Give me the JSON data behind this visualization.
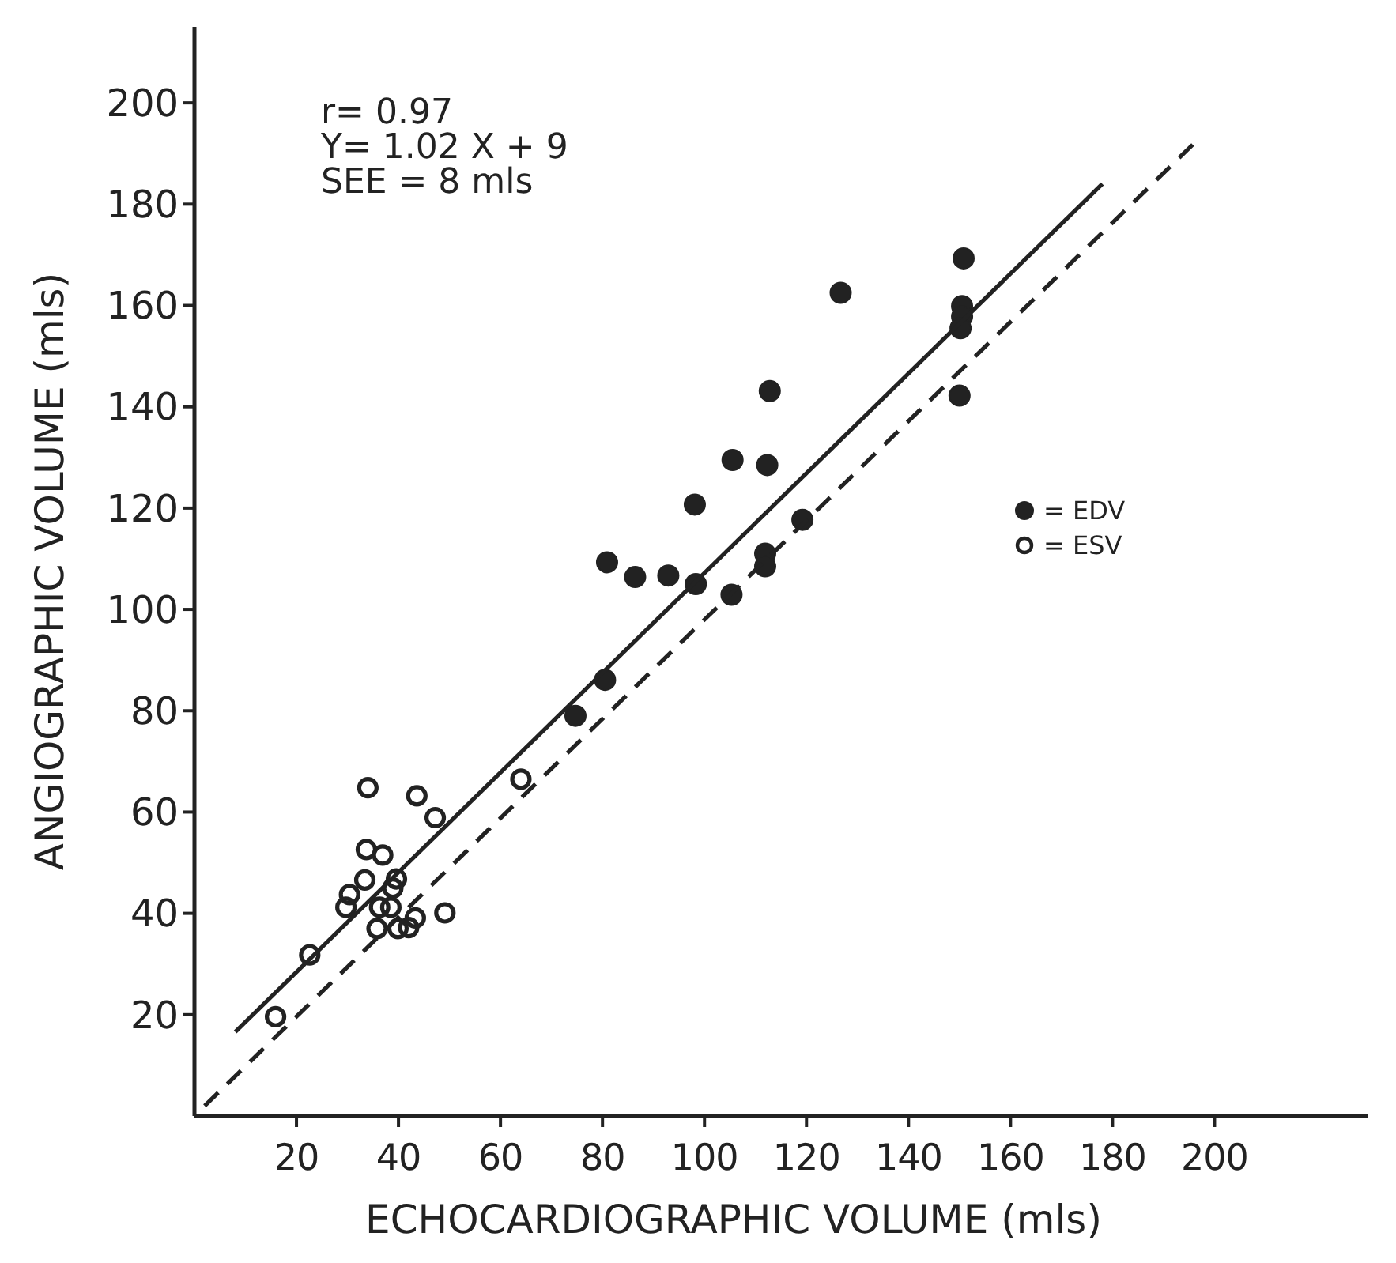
{
  "chart_data": {
    "type": "scatter",
    "xlabel": "ECHOCARDIOGRAPHIC VOLUME (mls)",
    "ylabel": "ANGIOGRAPHIC VOLUME (mls)",
    "xlim": [
      0,
      230
    ],
    "ylim": [
      0,
      215
    ],
    "xticks": [
      20,
      40,
      60,
      80,
      100,
      120,
      140,
      160,
      180,
      200
    ],
    "yticks": [
      20,
      40,
      60,
      80,
      100,
      120,
      140,
      160,
      180,
      200
    ],
    "grid": false,
    "legend": "right",
    "annotations": [
      "r= 0.97",
      "Y= 1.02 X + 9",
      "SEE = 8 mls"
    ],
    "series": [
      {
        "name": "= EDV",
        "marker": "circle",
        "color": "#222222",
        "x": [
          150.8,
          126.7,
          150.5,
          150.5,
          150.2,
          150,
          112.8,
          105.5,
          112.3,
          98.1,
          119.2,
          111.9,
          111.9,
          80.9,
          86.4,
          92.9,
          98.3,
          105.3,
          80.5,
          74.7
        ],
        "values": [
          169.3,
          162.5,
          159.9,
          157.8,
          155.5,
          142.2,
          143.1,
          129.5,
          128.5,
          120.7,
          117.7,
          111,
          108.5,
          109.3,
          106.4,
          106.7,
          105,
          102.9,
          86.1,
          79
        ]
      },
      {
        "name": "= ESV",
        "marker": "circle-open",
        "color": "#222222",
        "x": [
          34,
          43.6,
          47.2,
          64,
          33.7,
          36.9,
          33.4,
          39.6,
          38.9,
          30.4,
          29.7,
          36.3,
          38.5,
          35.8,
          39.9,
          42,
          43.3,
          49.1,
          22.6,
          15.9
        ],
        "values": [
          64.8,
          63.2,
          58.9,
          66.5,
          52.6,
          51.5,
          46.6,
          46.8,
          45,
          43.7,
          41.2,
          41.2,
          41.2,
          37,
          37,
          37.2,
          39.1,
          40.1,
          31.8,
          19.6
        ]
      },
      {
        "type": "line",
        "line_style": "solid",
        "color": "#222222",
        "x": [
          8,
          178
        ],
        "values": [
          16.6,
          184
        ]
      },
      {
        "type": "line",
        "line_style": "dashed",
        "color": "#222222",
        "x": [
          2,
          197
        ],
        "values": [
          2,
          193
        ]
      }
    ]
  }
}
